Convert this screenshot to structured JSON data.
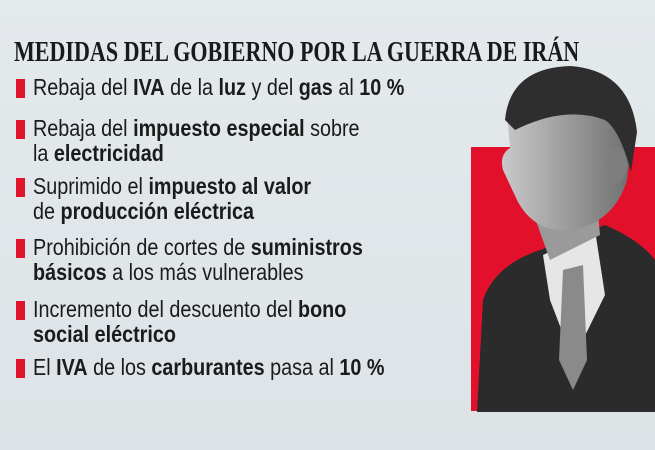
{
  "title": "MEDIDAS DEL GOBIERNO POR LA GUERRA DE IRÁN",
  "colors": {
    "accent": "#e2102a",
    "background": "#e1e7ea",
    "text": "#1b1b1b"
  },
  "items": [
    {
      "lines": [
        [
          [
            "Rebaja del ",
            false
          ],
          [
            "IVA",
            true
          ],
          [
            " de la ",
            false
          ],
          [
            "luz",
            true
          ],
          [
            " y del ",
            false
          ],
          [
            "gas",
            true
          ],
          [
            " al ",
            false
          ],
          [
            "10 %",
            true
          ]
        ]
      ]
    },
    {
      "lines": [
        [
          [
            "Rebaja del ",
            false
          ],
          [
            "impuesto especial",
            true
          ],
          [
            " sobre",
            false
          ]
        ],
        [
          [
            "la ",
            false
          ],
          [
            "electricidad",
            true
          ]
        ]
      ]
    },
    {
      "lines": [
        [
          [
            "Suprimido el ",
            false
          ],
          [
            "impuesto al valor",
            true
          ]
        ],
        [
          [
            "de ",
            false
          ],
          [
            "producción eléctrica",
            true
          ]
        ]
      ]
    },
    {
      "lines": [
        [
          [
            "Prohibición de cortes de ",
            false
          ],
          [
            "suministros",
            true
          ]
        ],
        [
          [
            "básicos",
            true
          ],
          [
            " a los más vulnerables",
            false
          ]
        ]
      ]
    },
    {
      "lines": [
        [
          [
            "Incremento del descuento del ",
            false
          ],
          [
            "bono",
            true
          ]
        ],
        [
          [
            "social eléctrico",
            true
          ]
        ]
      ]
    },
    {
      "lines": [
        [
          [
            "El ",
            false
          ],
          [
            "IVA",
            true
          ],
          [
            " de los ",
            false
          ],
          [
            "carburantes",
            true
          ],
          [
            " pasa al ",
            false
          ],
          [
            "10 %",
            true
          ]
        ]
      ]
    }
  ],
  "photo": {
    "icon": "politician-portrait"
  }
}
